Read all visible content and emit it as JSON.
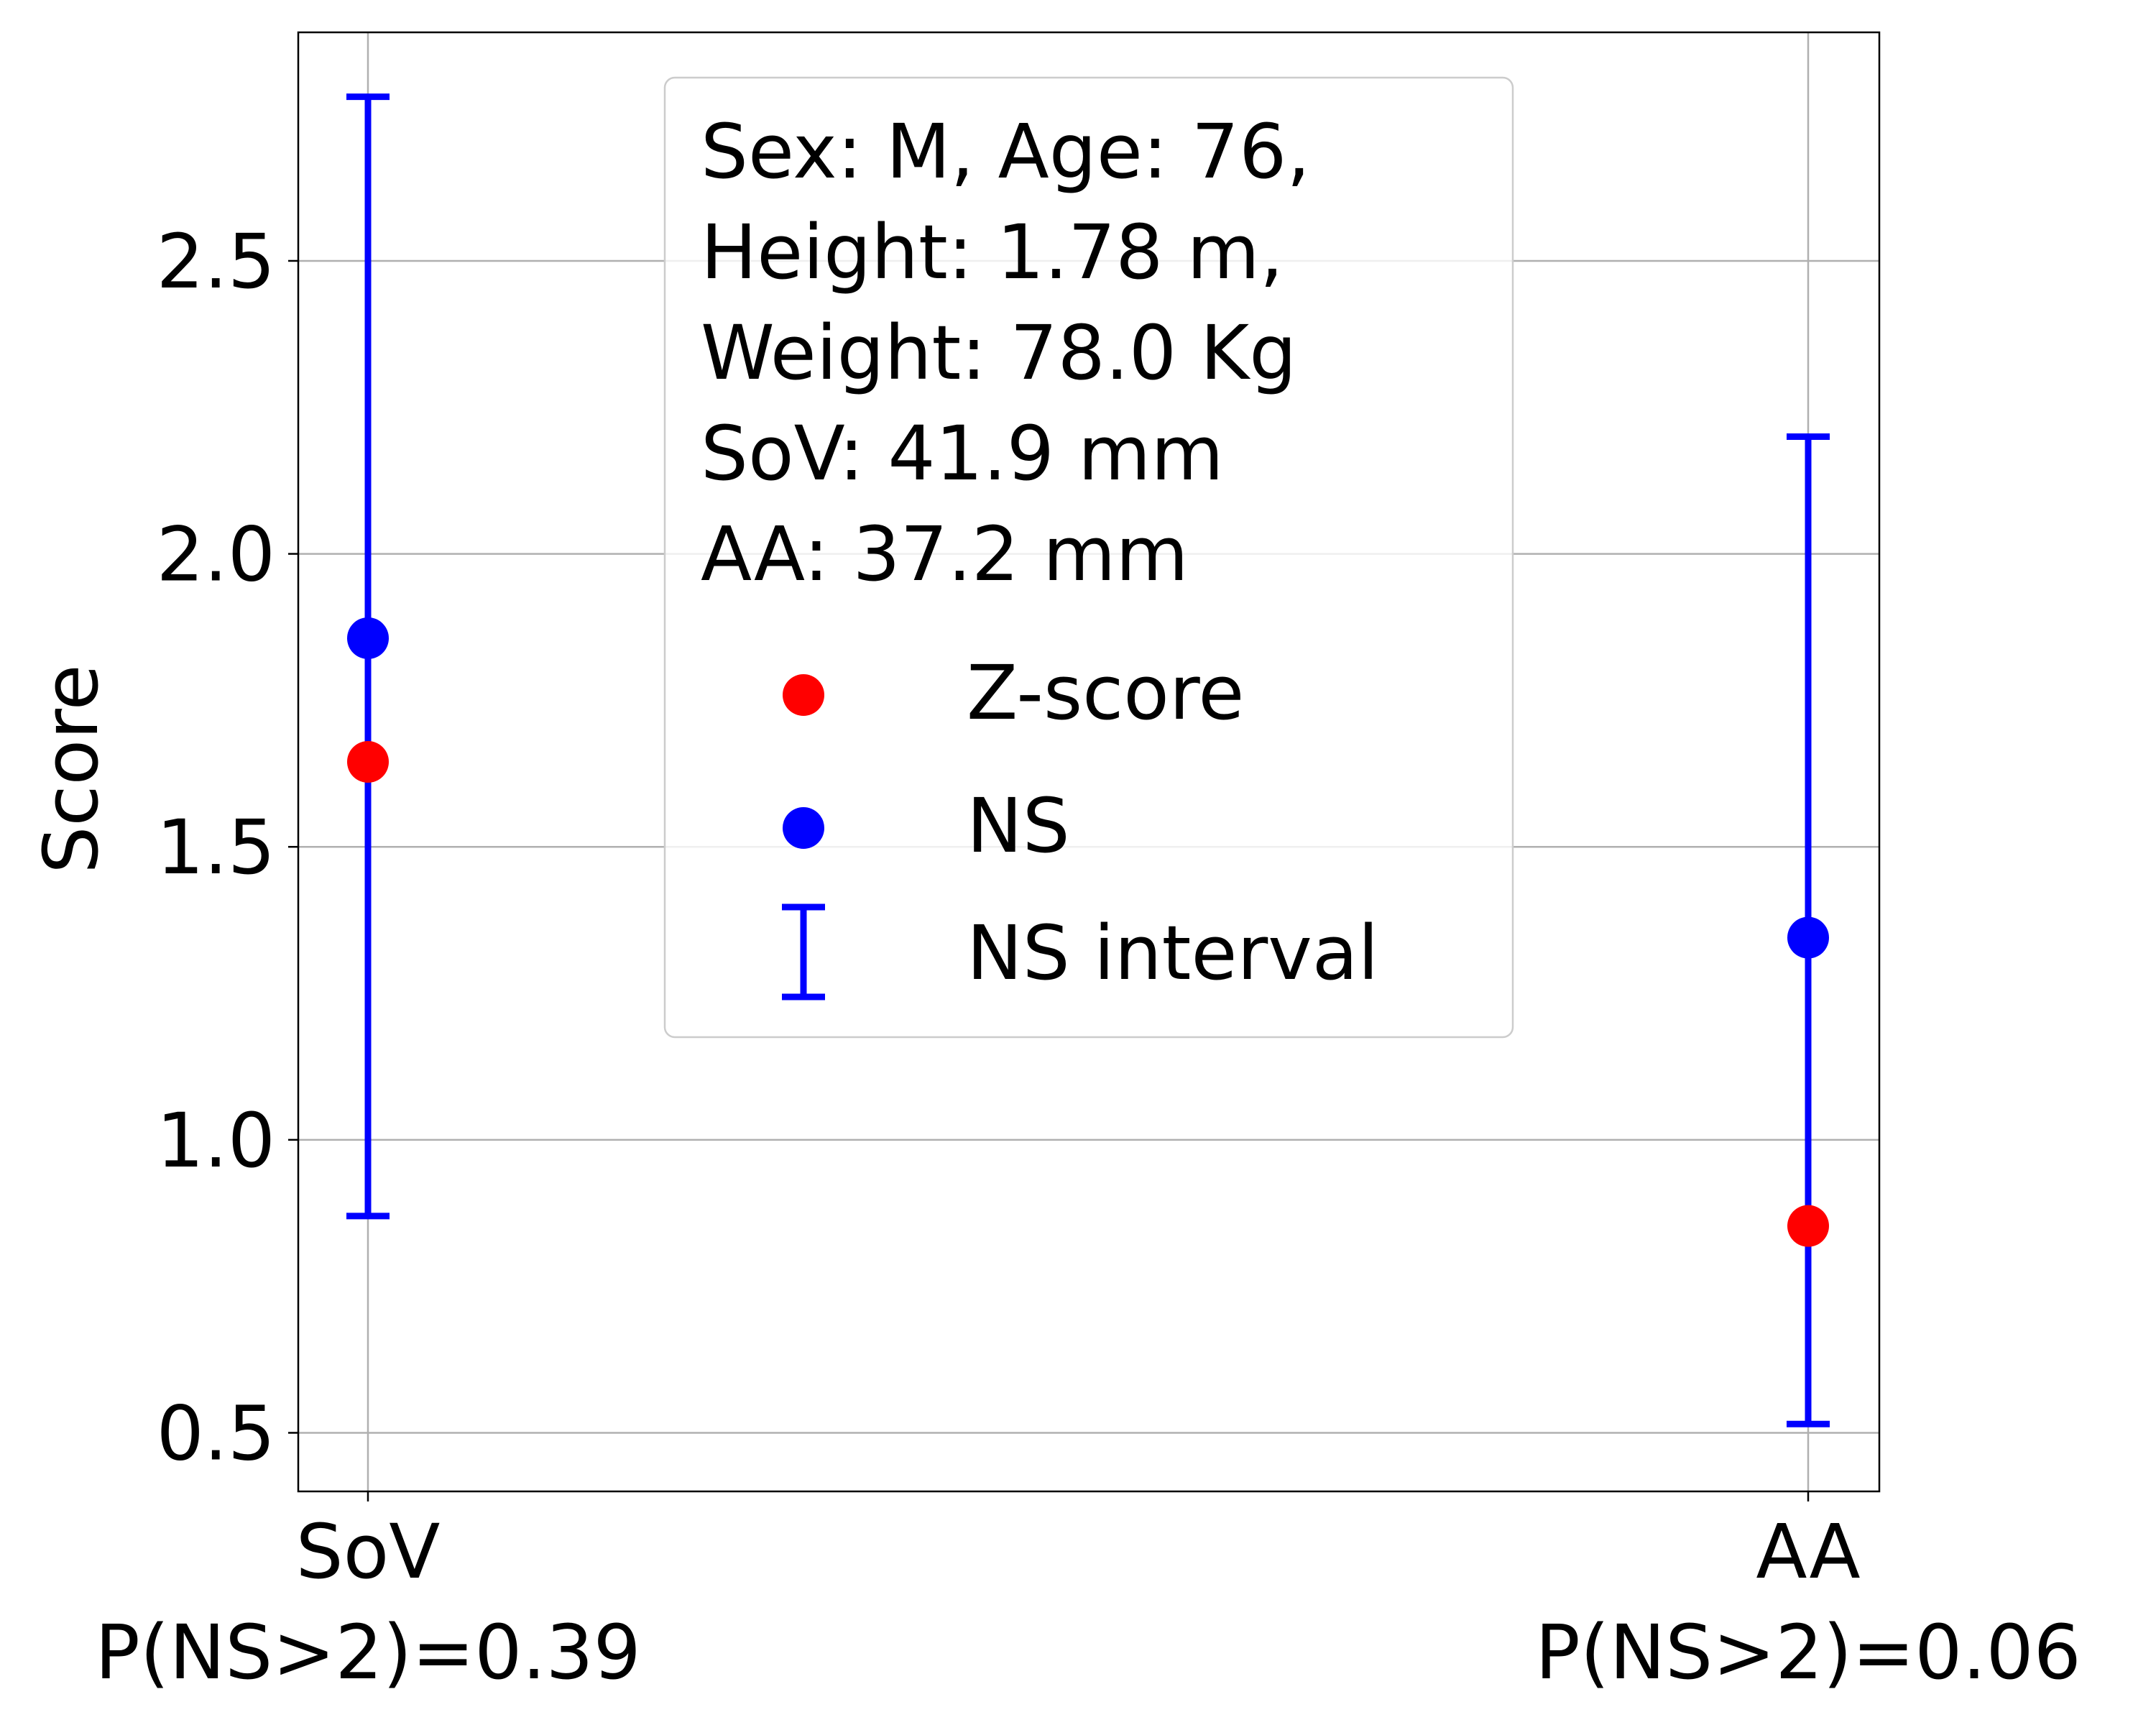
{
  "chart_data": {
    "type": "scatter",
    "categories": [
      "SoV",
      "AA"
    ],
    "category_sublabels": [
      "P(NS>2)=0.39",
      "P(NS>2)=0.06"
    ],
    "ylabel": "Score",
    "ylim": [
      0.4,
      2.89
    ],
    "yticks": [
      "0.5",
      "1.0",
      "1.5",
      "2.0",
      "2.5"
    ],
    "grid": true,
    "series": [
      {
        "name": "Z-score",
        "color": "#ff0000",
        "values": [
          1.645,
          0.853
        ]
      },
      {
        "name": "NS",
        "color": "#0000ff",
        "values": [
          1.856,
          1.345
        ]
      }
    ],
    "intervals": {
      "name": "NS interval",
      "color": "#0000ff",
      "low": [
        0.87,
        0.515
      ],
      "high": [
        2.78,
        2.2
      ]
    },
    "legend": {
      "placement": "top-center",
      "info_lines": [
        "Sex: M, Age: 76,",
        "Height: 1.78 m,",
        "Weight: 78.0 Kg",
        "SoV: 41.9 mm",
        "AA: 37.2 mm"
      ],
      "entries": [
        "Z-score",
        "NS",
        "NS interval"
      ]
    }
  }
}
